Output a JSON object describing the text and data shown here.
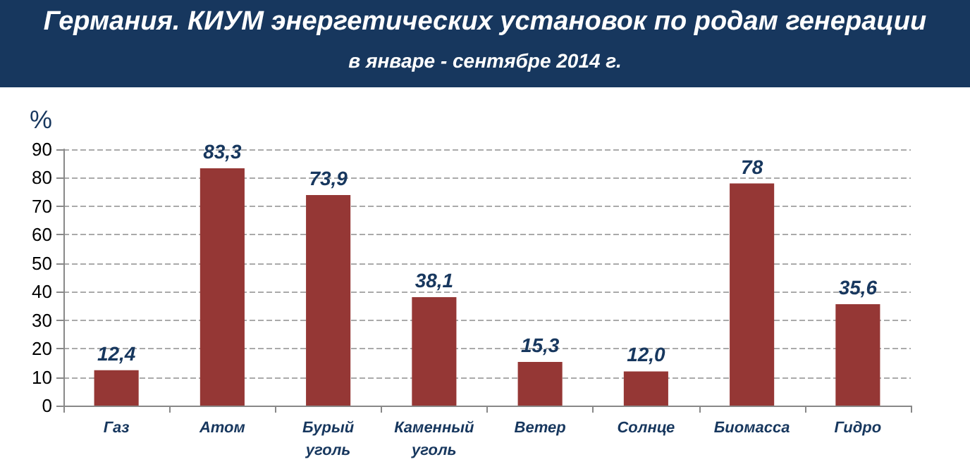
{
  "chart_data": {
    "type": "bar",
    "title": "Германия. КИУМ энергетических  установок по родам генерации",
    "subtitle": "в январе - сентябре 2014 г.",
    "ylabel": "%",
    "categories": [
      "Газ",
      "Атом",
      "Бурый уголь",
      "Каменный уголь",
      "Ветер",
      "Солнце",
      "Биомасса",
      "Гидро"
    ],
    "values": [
      12.4,
      83.3,
      73.9,
      38.1,
      15.3,
      12.0,
      78,
      35.6
    ],
    "value_labels": [
      "12,4",
      "83,3",
      "73,9",
      "38,1",
      "15,3",
      "12,0",
      "78",
      "35,6"
    ],
    "color": "#953735",
    "ylim": [
      0,
      90
    ],
    "yticks": [
      0,
      10,
      20,
      30,
      40,
      50,
      60,
      70,
      80,
      90
    ],
    "grid": "y"
  }
}
